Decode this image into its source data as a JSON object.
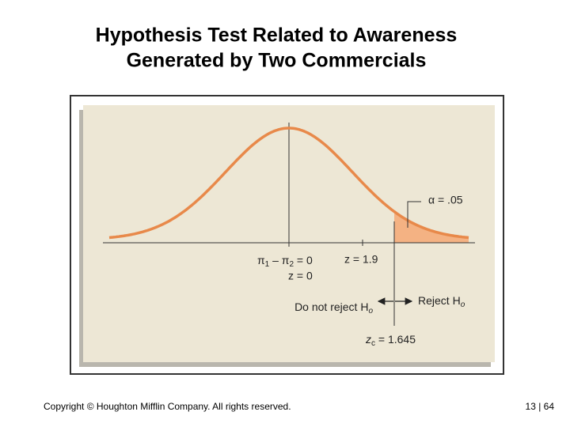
{
  "title": {
    "lines": [
      "Hypothesis Test Related to Awareness",
      "Generated by Two Commercials"
    ]
  },
  "diagram": {
    "alpha_label": "α = .05",
    "null_label": [
      "π",
      "1",
      " – π",
      "2",
      " = 0"
    ],
    "z_zero_label": "z = 0",
    "z_stat_label": "z = 1.9",
    "do_not_reject_label": [
      "Do not reject H",
      "o"
    ],
    "reject_label": [
      "Reject H",
      "o"
    ],
    "critical_label": [
      "z",
      "c",
      " = 1.645"
    ]
  },
  "footer": {
    "copyright": "Copyright © Houghton Mifflin Company.  All rights reserved.",
    "page": "13 | 64"
  }
}
